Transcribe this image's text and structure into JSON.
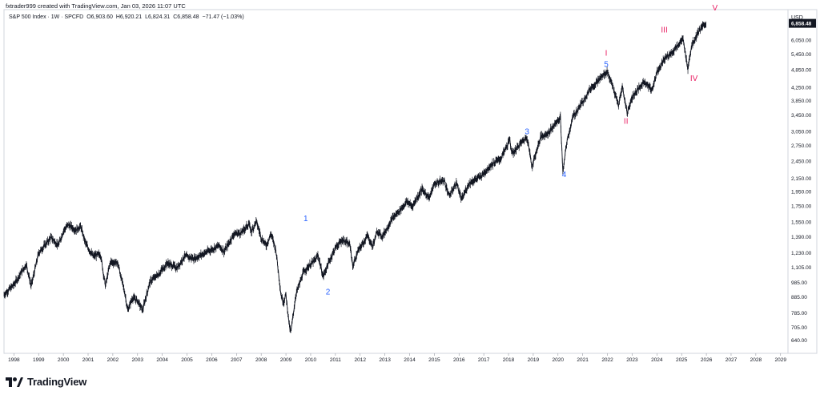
{
  "header": {
    "credit": "fxtrader999 created with TradingView.com, Jan 03, 2026 11:07 UTC"
  },
  "legend": {
    "symbol": "S&P 500 Index · 1W · SPCFD",
    "open": "O6,903.60",
    "high": "H6,920.21",
    "low": "L6,824.31",
    "close": "C6,858.48",
    "change": "−71.47 (−1.03%)"
  },
  "footer": {
    "brand": "TradingView"
  },
  "chart_data": {
    "type": "line",
    "title": "S&P 500 Index · 1W · SPCFD",
    "currency": "USD",
    "last_price": "6,858.48",
    "y_scale": "log",
    "ylim": [
      580,
      7600
    ],
    "xlim": [
      1997.6,
      2029.3
    ],
    "y_ticks": [
      "6,050.00",
      "5,450.00",
      "4,850.00",
      "4,250.00",
      "3,850.00",
      "3,450.00",
      "3,050.00",
      "2,750.00",
      "2,450.00",
      "2,150.00",
      "1,950.00",
      "1,750.00",
      "1,550.00",
      "1,390.00",
      "1,230.00",
      "1,105.00",
      "985.00",
      "885.00",
      "785.00",
      "705.00",
      "640.00"
    ],
    "x_ticks": [
      "1998",
      "1999",
      "2000",
      "2001",
      "2002",
      "2003",
      "2004",
      "2005",
      "2006",
      "2007",
      "2008",
      "2009",
      "2010",
      "2011",
      "2012",
      "2013",
      "2014",
      "2015",
      "2016",
      "2017",
      "2018",
      "2019",
      "2020",
      "2021",
      "2022",
      "2023",
      "2024",
      "2025",
      "2026",
      "2027",
      "2028",
      "2029"
    ],
    "series": [
      {
        "points": [
          [
            1997.6,
            900
          ],
          [
            1998.0,
            970
          ],
          [
            1998.5,
            1130
          ],
          [
            1998.7,
            960
          ],
          [
            1999.0,
            1230
          ],
          [
            1999.5,
            1380
          ],
          [
            1999.8,
            1300
          ],
          [
            2000.0,
            1450
          ],
          [
            2000.2,
            1520
          ],
          [
            2000.5,
            1460
          ],
          [
            2000.7,
            1500
          ],
          [
            2000.9,
            1320
          ],
          [
            2001.2,
            1200
          ],
          [
            2001.5,
            1220
          ],
          [
            2001.7,
            960
          ],
          [
            2001.9,
            1150
          ],
          [
            2002.2,
            1140
          ],
          [
            2002.5,
            900
          ],
          [
            2002.6,
            800
          ],
          [
            2002.8,
            880
          ],
          [
            2003.0,
            860
          ],
          [
            2003.2,
            800
          ],
          [
            2003.5,
            990
          ],
          [
            2003.9,
            1060
          ],
          [
            2004.2,
            1140
          ],
          [
            2004.6,
            1100
          ],
          [
            2004.9,
            1200
          ],
          [
            2005.3,
            1180
          ],
          [
            2005.8,
            1240
          ],
          [
            2006.3,
            1300
          ],
          [
            2006.5,
            1240
          ],
          [
            2006.9,
            1420
          ],
          [
            2007.2,
            1430
          ],
          [
            2007.5,
            1530
          ],
          [
            2007.6,
            1440
          ],
          [
            2007.8,
            1560
          ],
          [
            2008.0,
            1380
          ],
          [
            2008.2,
            1300
          ],
          [
            2008.4,
            1420
          ],
          [
            2008.6,
            1250
          ],
          [
            2008.8,
            900
          ],
          [
            2008.9,
            850
          ],
          [
            2009.0,
            900
          ],
          [
            2009.15,
            700
          ],
          [
            2009.2,
            680
          ],
          [
            2009.4,
            900
          ],
          [
            2009.7,
            1060
          ],
          [
            2009.9,
            1110
          ],
          [
            2010.2,
            1170
          ],
          [
            2010.3,
            1210
          ],
          [
            2010.5,
            1030
          ],
          [
            2010.7,
            1130
          ],
          [
            2011.0,
            1280
          ],
          [
            2011.3,
            1360
          ],
          [
            2011.6,
            1300
          ],
          [
            2011.7,
            1110
          ],
          [
            2011.9,
            1240
          ],
          [
            2012.3,
            1400
          ],
          [
            2012.5,
            1290
          ],
          [
            2012.7,
            1450
          ],
          [
            2012.9,
            1390
          ],
          [
            2013.3,
            1590
          ],
          [
            2013.6,
            1690
          ],
          [
            2013.9,
            1810
          ],
          [
            2014.1,
            1740
          ],
          [
            2014.5,
            1980
          ],
          [
            2014.8,
            1860
          ],
          [
            2015.0,
            2060
          ],
          [
            2015.4,
            2120
          ],
          [
            2015.6,
            1880
          ],
          [
            2015.9,
            2080
          ],
          [
            2016.1,
            1830
          ],
          [
            2016.4,
            2070
          ],
          [
            2016.9,
            2190
          ],
          [
            2017.3,
            2380
          ],
          [
            2017.7,
            2500
          ],
          [
            2018.05,
            2870
          ],
          [
            2018.15,
            2580
          ],
          [
            2018.5,
            2800
          ],
          [
            2018.75,
            2930
          ],
          [
            2018.95,
            2350
          ],
          [
            2019.3,
            2930
          ],
          [
            2019.6,
            3020
          ],
          [
            2019.9,
            3240
          ],
          [
            2020.1,
            3390
          ],
          [
            2020.2,
            2237
          ],
          [
            2020.35,
            2800
          ],
          [
            2020.6,
            3400
          ],
          [
            2020.9,
            3700
          ],
          [
            2021.3,
            4200
          ],
          [
            2021.6,
            4450
          ],
          [
            2021.99,
            4790
          ],
          [
            2022.2,
            4300
          ],
          [
            2022.45,
            3700
          ],
          [
            2022.6,
            4280
          ],
          [
            2022.8,
            3500
          ],
          [
            2023.0,
            3950
          ],
          [
            2023.5,
            4450
          ],
          [
            2023.8,
            4150
          ],
          [
            2024.0,
            4780
          ],
          [
            2024.3,
            5250
          ],
          [
            2024.6,
            5500
          ],
          [
            2025.05,
            6100
          ],
          [
            2025.25,
            4900
          ],
          [
            2025.4,
            5800
          ],
          [
            2025.7,
            6500
          ],
          [
            2025.99,
            6858
          ]
        ]
      }
    ],
    "annotations": [
      {
        "text": "1",
        "x": 2009.8,
        "y": 1560,
        "color": "#2962ff"
      },
      {
        "text": "2",
        "x": 2010.7,
        "y": 900,
        "color": "#2962ff"
      },
      {
        "text": "3",
        "x": 2018.75,
        "y": 2990,
        "color": "#2962ff"
      },
      {
        "text": "4",
        "x": 2020.25,
        "y": 2170,
        "color": "#2962ff"
      },
      {
        "text": "5",
        "x": 2021.95,
        "y": 4950,
        "color": "#2962ff"
      },
      {
        "text": "I",
        "x": 2021.95,
        "y": 5380,
        "color": "#e91e63"
      },
      {
        "text": "II",
        "x": 2022.75,
        "y": 3230,
        "color": "#e91e63"
      },
      {
        "text": "III",
        "x": 2024.3,
        "y": 6400,
        "color": "#e91e63"
      },
      {
        "text": "IV",
        "x": 2025.5,
        "y": 4460,
        "color": "#e91e63"
      },
      {
        "text": "V",
        "x": 2026.35,
        "y": 7550,
        "color": "#e91e63"
      }
    ],
    "colors": {
      "line": "#131722",
      "wave_minor": "#2962ff",
      "wave_major": "#e91e63",
      "price_tag_bg": "#131722",
      "price_tag_text": "#ffffff"
    }
  }
}
